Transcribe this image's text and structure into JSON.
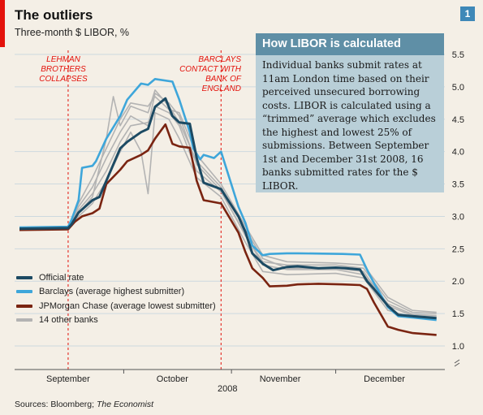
{
  "header": {
    "title": "The outliers",
    "subtitle": "Three-month $ LIBOR, %",
    "figure_number": "1"
  },
  "infobox": {
    "heading": "How LIBOR is calculated",
    "text": "Individual banks submit rates at 11am London time based on their perceived unsecured borrowing costs. LIBOR is calculated using a “trimmed” average which excludes the highest and lowest 25% of submissions. Between September 1st and December 31st 2008, 16 banks submitted rates for the $ LIBOR."
  },
  "annotations": [
    {
      "text": "Lehman Brothers collapses",
      "lines": [
        "LEHMAN",
        "BROTHERS",
        "COLLAPSES"
      ]
    },
    {
      "text": "Barclays contact with Bank of England",
      "lines": [
        "BARCLAYS",
        "CONTACT WITH",
        "BANK OF",
        "ENGLAND"
      ]
    }
  ],
  "footer": {
    "source_prefix": "Sources: Bloomberg; ",
    "source_italic": "The Economist"
  },
  "colors": {
    "official": "#1c4a63",
    "barclays": "#3ea6da",
    "jpmorgan": "#7a2411",
    "others": "#b3b3b3",
    "accent": "#e3120b"
  },
  "chart_data": {
    "type": "line",
    "title": "The outliers",
    "ylabel": "Three-month $ LIBOR, %",
    "xlabel": "2008",
    "ylim": [
      1.0,
      5.5
    ],
    "y_ticks": [
      1.0,
      1.5,
      2.0,
      2.5,
      3.0,
      3.5,
      4.0,
      4.5,
      5.0,
      5.5
    ],
    "x_domain": [
      "2008-09-01",
      "2008-12-31"
    ],
    "x_month_labels": [
      {
        "label": "September",
        "date": "2008-09-15"
      },
      {
        "label": "October",
        "date": "2008-10-15"
      },
      {
        "label": "November",
        "date": "2008-11-15"
      },
      {
        "label": "December",
        "date": "2008-12-15"
      }
    ],
    "events": [
      {
        "date": "2008-09-15",
        "label": "Lehman Brothers collapses"
      },
      {
        "date": "2008-10-29",
        "label": "Barclays contact with Bank of England"
      }
    ],
    "grid": true,
    "legend_position": "bottom-left",
    "series": [
      {
        "name": "Official rate",
        "points": [
          [
            "2008-09-01",
            2.81
          ],
          [
            "2008-09-15",
            2.82
          ],
          [
            "2008-09-16",
            2.88
          ],
          [
            "2008-09-18",
            3.06
          ],
          [
            "2008-09-22",
            3.25
          ],
          [
            "2008-09-24",
            3.3
          ],
          [
            "2008-09-26",
            3.55
          ],
          [
            "2008-09-30",
            4.05
          ],
          [
            "2008-10-02",
            4.15
          ],
          [
            "2008-10-06",
            4.3
          ],
          [
            "2008-10-08",
            4.35
          ],
          [
            "2008-10-10",
            4.69
          ],
          [
            "2008-10-13",
            4.82
          ],
          [
            "2008-10-15",
            4.55
          ],
          [
            "2008-10-17",
            4.45
          ],
          [
            "2008-10-20",
            4.43
          ],
          [
            "2008-10-22",
            3.9
          ],
          [
            "2008-10-24",
            3.52
          ],
          [
            "2008-10-29",
            3.42
          ],
          [
            "2008-11-03",
            3.0
          ],
          [
            "2008-11-05",
            2.76
          ],
          [
            "2008-11-07",
            2.43
          ],
          [
            "2008-11-10",
            2.27
          ],
          [
            "2008-11-13",
            2.17
          ],
          [
            "2008-11-17",
            2.22
          ],
          [
            "2008-11-20",
            2.23
          ],
          [
            "2008-11-26",
            2.2
          ],
          [
            "2008-12-01",
            2.21
          ],
          [
            "2008-12-04",
            2.2
          ],
          [
            "2008-12-08",
            2.18
          ],
          [
            "2008-12-10",
            2.0
          ],
          [
            "2008-12-12",
            1.88
          ],
          [
            "2008-12-16",
            1.62
          ],
          [
            "2008-12-19",
            1.48
          ],
          [
            "2008-12-23",
            1.46
          ],
          [
            "2008-12-30",
            1.43
          ]
        ]
      },
      {
        "name": "Barclays (average highest submitter)",
        "points": [
          [
            "2008-09-01",
            2.83
          ],
          [
            "2008-09-15",
            2.84
          ],
          [
            "2008-09-16",
            2.95
          ],
          [
            "2008-09-18",
            3.25
          ],
          [
            "2008-09-19",
            3.75
          ],
          [
            "2008-09-22",
            3.78
          ],
          [
            "2008-09-23",
            3.85
          ],
          [
            "2008-09-26",
            4.2
          ],
          [
            "2008-09-30",
            4.55
          ],
          [
            "2008-10-02",
            4.8
          ],
          [
            "2008-10-06",
            5.05
          ],
          [
            "2008-10-08",
            5.03
          ],
          [
            "2008-10-10",
            5.12
          ],
          [
            "2008-10-15",
            5.08
          ],
          [
            "2008-10-17",
            4.8
          ],
          [
            "2008-10-20",
            4.3
          ],
          [
            "2008-10-21",
            4.05
          ],
          [
            "2008-10-23",
            3.88
          ],
          [
            "2008-10-24",
            3.95
          ],
          [
            "2008-10-27",
            3.9
          ],
          [
            "2008-10-29",
            4.0
          ],
          [
            "2008-11-03",
            3.15
          ],
          [
            "2008-11-05",
            2.9
          ],
          [
            "2008-11-07",
            2.55
          ],
          [
            "2008-11-10",
            2.4
          ],
          [
            "2008-11-12",
            2.42
          ],
          [
            "2008-11-17",
            2.43
          ],
          [
            "2008-11-20",
            2.43
          ],
          [
            "2008-12-03",
            2.42
          ],
          [
            "2008-12-08",
            2.41
          ],
          [
            "2008-12-10",
            2.18
          ],
          [
            "2008-12-12",
            1.97
          ],
          [
            "2008-12-16",
            1.6
          ],
          [
            "2008-12-19",
            1.46
          ],
          [
            "2008-12-23",
            1.44
          ],
          [
            "2008-12-30",
            1.4
          ]
        ]
      },
      {
        "name": "JPMorgan Chase (average lowest submitter)",
        "points": [
          [
            "2008-09-01",
            2.79
          ],
          [
            "2008-09-15",
            2.8
          ],
          [
            "2008-09-17",
            2.92
          ],
          [
            "2008-09-19",
            3.0
          ],
          [
            "2008-09-22",
            3.05
          ],
          [
            "2008-09-24",
            3.12
          ],
          [
            "2008-09-26",
            3.5
          ],
          [
            "2008-09-30",
            3.72
          ],
          [
            "2008-10-02",
            3.85
          ],
          [
            "2008-10-06",
            3.95
          ],
          [
            "2008-10-08",
            4.02
          ],
          [
            "2008-10-10",
            4.2
          ],
          [
            "2008-10-13",
            4.42
          ],
          [
            "2008-10-15",
            4.12
          ],
          [
            "2008-10-17",
            4.08
          ],
          [
            "2008-10-20",
            4.06
          ],
          [
            "2008-10-22",
            3.55
          ],
          [
            "2008-10-24",
            3.25
          ],
          [
            "2008-10-29",
            3.2
          ],
          [
            "2008-11-03",
            2.75
          ],
          [
            "2008-11-05",
            2.45
          ],
          [
            "2008-11-07",
            2.2
          ],
          [
            "2008-11-10",
            2.05
          ],
          [
            "2008-11-12",
            1.92
          ],
          [
            "2008-11-17",
            1.93
          ],
          [
            "2008-11-20",
            1.95
          ],
          [
            "2008-11-26",
            1.96
          ],
          [
            "2008-12-03",
            1.95
          ],
          [
            "2008-12-08",
            1.94
          ],
          [
            "2008-12-10",
            1.88
          ],
          [
            "2008-12-12",
            1.67
          ],
          [
            "2008-12-16",
            1.3
          ],
          [
            "2008-12-19",
            1.25
          ],
          [
            "2008-12-23",
            1.2
          ],
          [
            "2008-12-30",
            1.17
          ]
        ]
      },
      {
        "name": "14 other banks",
        "lines": [
          [
            [
              "2008-09-01",
              2.82
            ],
            [
              "2008-09-15",
              2.83
            ],
            [
              "2008-09-18",
              3.15
            ],
            [
              "2008-09-22",
              3.45
            ],
            [
              "2008-09-26",
              3.9
            ],
            [
              "2008-09-30",
              4.3
            ],
            [
              "2008-10-03",
              4.55
            ],
            [
              "2008-10-08",
              4.4
            ],
            [
              "2008-10-10",
              4.9
            ],
            [
              "2008-10-14",
              4.75
            ],
            [
              "2008-10-17",
              4.55
            ],
            [
              "2008-10-22",
              3.8
            ],
            [
              "2008-10-29",
              3.4
            ],
            [
              "2008-11-05",
              2.7
            ],
            [
              "2008-11-10",
              2.3
            ],
            [
              "2008-11-17",
              2.25
            ],
            [
              "2008-12-01",
              2.25
            ],
            [
              "2008-12-09",
              2.2
            ],
            [
              "2008-12-16",
              1.7
            ],
            [
              "2008-12-23",
              1.52
            ],
            [
              "2008-12-30",
              1.5
            ]
          ],
          [
            [
              "2008-09-01",
              2.81
            ],
            [
              "2008-09-15",
              2.82
            ],
            [
              "2008-09-18",
              3.05
            ],
            [
              "2008-09-22",
              3.3
            ],
            [
              "2008-09-26",
              4.2
            ],
            [
              "2008-09-28",
              4.85
            ],
            [
              "2008-09-30",
              4.4
            ],
            [
              "2008-10-03",
              4.7
            ],
            [
              "2008-10-08",
              4.6
            ],
            [
              "2008-10-10",
              4.95
            ],
            [
              "2008-10-14",
              4.7
            ],
            [
              "2008-10-17",
              4.45
            ],
            [
              "2008-10-22",
              3.85
            ],
            [
              "2008-10-29",
              3.45
            ],
            [
              "2008-11-05",
              2.8
            ],
            [
              "2008-11-10",
              2.35
            ],
            [
              "2008-11-17",
              2.2
            ],
            [
              "2008-12-01",
              2.2
            ],
            [
              "2008-12-09",
              2.15
            ],
            [
              "2008-12-16",
              1.62
            ],
            [
              "2008-12-23",
              1.47
            ],
            [
              "2008-12-30",
              1.45
            ]
          ],
          [
            [
              "2008-09-01",
              2.8
            ],
            [
              "2008-09-15",
              2.81
            ],
            [
              "2008-09-18",
              3.0
            ],
            [
              "2008-09-22",
              3.2
            ],
            [
              "2008-09-26",
              3.55
            ],
            [
              "2008-09-30",
              4.0
            ],
            [
              "2008-10-03",
              4.3
            ],
            [
              "2008-10-06",
              4.0
            ],
            [
              "2008-10-08",
              3.35
            ],
            [
              "2008-10-10",
              4.6
            ],
            [
              "2008-10-14",
              4.5
            ],
            [
              "2008-10-17",
              4.2
            ],
            [
              "2008-10-22",
              3.6
            ],
            [
              "2008-10-29",
              3.3
            ],
            [
              "2008-11-05",
              2.6
            ],
            [
              "2008-11-10",
              2.15
            ],
            [
              "2008-11-17",
              2.1
            ],
            [
              "2008-12-01",
              2.12
            ],
            [
              "2008-12-09",
              2.05
            ],
            [
              "2008-12-16",
              1.55
            ],
            [
              "2008-12-23",
              1.44
            ],
            [
              "2008-12-30",
              1.42
            ]
          ],
          [
            [
              "2008-09-01",
              2.83
            ],
            [
              "2008-09-15",
              2.84
            ],
            [
              "2008-09-18",
              3.2
            ],
            [
              "2008-09-22",
              3.6
            ],
            [
              "2008-09-26",
              4.05
            ],
            [
              "2008-09-30",
              4.5
            ],
            [
              "2008-10-03",
              4.75
            ],
            [
              "2008-10-08",
              4.7
            ],
            [
              "2008-10-10",
              4.85
            ],
            [
              "2008-10-14",
              4.65
            ],
            [
              "2008-10-17",
              4.6
            ],
            [
              "2008-10-22",
              3.95
            ],
            [
              "2008-10-29",
              3.5
            ],
            [
              "2008-11-05",
              2.85
            ],
            [
              "2008-11-10",
              2.4
            ],
            [
              "2008-11-17",
              2.3
            ],
            [
              "2008-12-01",
              2.28
            ],
            [
              "2008-12-09",
              2.25
            ],
            [
              "2008-12-16",
              1.75
            ],
            [
              "2008-12-23",
              1.55
            ],
            [
              "2008-12-30",
              1.52
            ]
          ],
          [
            [
              "2008-09-01",
              2.82
            ],
            [
              "2008-09-15",
              2.82
            ],
            [
              "2008-09-18",
              3.1
            ],
            [
              "2008-09-22",
              3.35
            ],
            [
              "2008-09-26",
              3.7
            ],
            [
              "2008-09-30",
              4.15
            ],
            [
              "2008-10-03",
              4.4
            ],
            [
              "2008-10-08",
              4.45
            ],
            [
              "2008-10-10",
              4.7
            ],
            [
              "2008-10-14",
              4.6
            ],
            [
              "2008-10-17",
              4.4
            ],
            [
              "2008-10-22",
              3.7
            ],
            [
              "2008-10-29",
              3.38
            ],
            [
              "2008-11-05",
              2.72
            ],
            [
              "2008-11-10",
              2.25
            ],
            [
              "2008-11-17",
              2.18
            ],
            [
              "2008-12-01",
              2.18
            ],
            [
              "2008-12-09",
              2.1
            ],
            [
              "2008-12-16",
              1.65
            ],
            [
              "2008-12-23",
              1.49
            ],
            [
              "2008-12-30",
              1.47
            ]
          ]
        ]
      }
    ]
  }
}
